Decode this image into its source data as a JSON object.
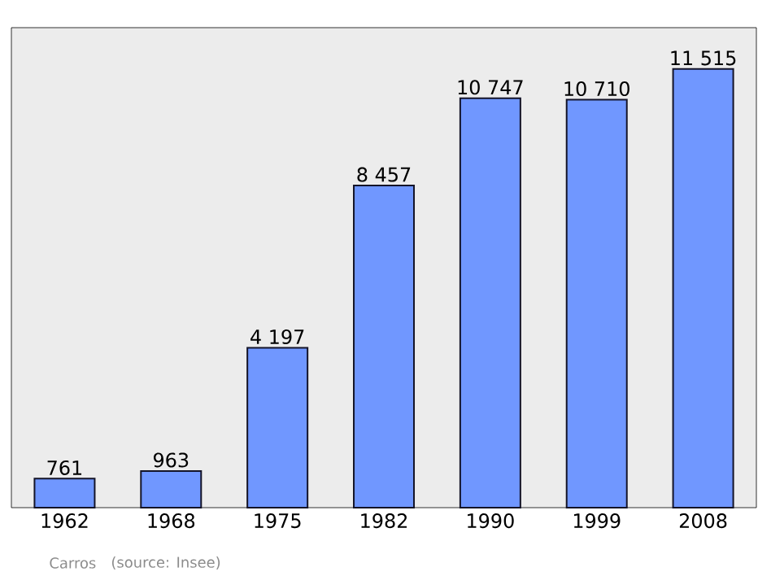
{
  "chart_data": {
    "type": "bar",
    "categories": [
      "1962",
      "1968",
      "1975",
      "1982",
      "1990",
      "1999",
      "2008"
    ],
    "values": [
      761,
      963,
      4197,
      8457,
      10747,
      10710,
      11515
    ],
    "value_labels": [
      "761",
      "963",
      "4 197",
      "8 457",
      "10 747",
      "10 710",
      "11 515"
    ],
    "color": "#7097ff",
    "ylim": [
      0,
      12600
    ],
    "tick_labels": "x",
    "annotations": [
      "Carros",
      "(source: Insee)"
    ]
  }
}
